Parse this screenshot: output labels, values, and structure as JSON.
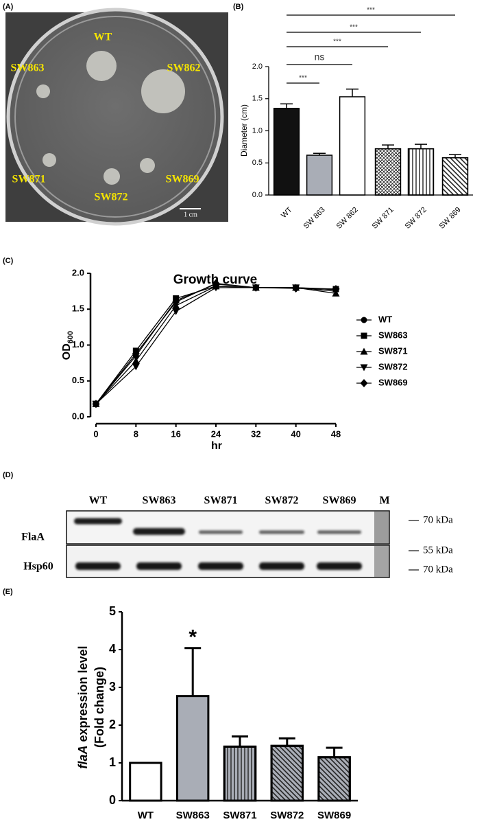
{
  "panel_labels": [
    "(A)",
    "(B)",
    "(C)",
    "(D)",
    "(E)"
  ],
  "panel_a": {
    "colonies": [
      "WT",
      "SW863",
      "SW862",
      "SW871",
      "SW872",
      "SW869"
    ],
    "scale_bar": "1 cm"
  },
  "panel_d": {
    "lanes": [
      "WT",
      "SW863",
      "SW871",
      "SW872",
      "SW869",
      "M"
    ],
    "rows": [
      "FlaA",
      "Hsp60"
    ],
    "markers": [
      "70 kDa",
      "55 kDa",
      "70 kDa"
    ]
  },
  "chart_data": [
    {
      "type": "bar",
      "ylabel": "Diameter (cm)",
      "categories": [
        "WT",
        "SW 863",
        "SW 862",
        "SW 871",
        "SW 872",
        "SW 869"
      ],
      "values": [
        1.35,
        0.62,
        1.53,
        0.72,
        0.72,
        0.58
      ],
      "errors": [
        0.07,
        0.03,
        0.12,
        0.06,
        0.07,
        0.05
      ],
      "bar_styles": [
        {
          "color": "#111111"
        },
        {
          "color": "#a9adb6"
        },
        {
          "color": "#ffffff"
        },
        {
          "color": "#ffffff",
          "hatch": "xxxx"
        },
        {
          "color": "#ffffff",
          "hatch": "|||"
        },
        {
          "color": "#ffffff",
          "hatch": "\\\\"
        }
      ],
      "ylim": [
        0,
        2
      ],
      "yticks": [
        {
          "value": 0,
          "label": "0.0"
        },
        0.5,
        {
          "value": 1,
          "label": "1.0"
        },
        1.5,
        {
          "value": 2,
          "label": "2.0"
        }
      ],
      "comparisons": [
        {
          "pair": [
            "WT",
            "SW 863"
          ],
          "label": "***"
        },
        {
          "pair": [
            "WT",
            "SW 862"
          ],
          "label": "ns"
        },
        {
          "pair": [
            "WT",
            "SW 871"
          ],
          "label": "***"
        },
        {
          "pair": [
            "WT",
            "SW 872"
          ],
          "label": "***"
        },
        {
          "pair": [
            "WT",
            "SW 869"
          ],
          "label": "***"
        }
      ]
    },
    {
      "type": "line",
      "title": "Growth curve",
      "xlabel": "hr",
      "ylabel": "OD",
      "ylabel_subscript": "600",
      "x": [
        0,
        8,
        16,
        24,
        32,
        40,
        48
      ],
      "xlim": [
        0,
        48
      ],
      "xticks": [
        0,
        8,
        16,
        24,
        32,
        40,
        48
      ],
      "ylim": [
        0,
        2
      ],
      "yticks": [
        {
          "value": 0,
          "label": "0.0"
        },
        0.5,
        {
          "value": 1,
          "label": "1.0"
        },
        1.5,
        {
          "value": 2,
          "label": "2.0"
        }
      ],
      "series": [
        {
          "name": "WT",
          "color": "#000000",
          "marker": "circle",
          "values": [
            0.18,
            0.85,
            1.62,
            1.85,
            1.8,
            1.8,
            1.77
          ]
        },
        {
          "name": "SW863",
          "color": "#000000",
          "marker": "square",
          "values": [
            0.18,
            0.92,
            1.65,
            1.82,
            1.8,
            1.8,
            1.78
          ]
        },
        {
          "name": "SW871",
          "color": "#000000",
          "marker": "triangle-up",
          "values": [
            0.18,
            0.78,
            1.55,
            1.82,
            1.8,
            1.8,
            1.72
          ]
        },
        {
          "name": "SW872",
          "color": "#000000",
          "marker": "triangle-down",
          "values": [
            0.18,
            0.7,
            1.47,
            1.8,
            1.8,
            1.8,
            1.75
          ]
        },
        {
          "name": "SW869",
          "color": "#000000",
          "marker": "diamond",
          "values": [
            0.18,
            0.88,
            1.6,
            1.86,
            1.8,
            1.79,
            1.78
          ]
        }
      ]
    },
    {
      "type": "bar",
      "ylabel_italic": "flaA",
      "ylabel": " expression level",
      "ylabel_line2": "(Fold change)",
      "categories": [
        "WT",
        "SW863",
        "SW871",
        "SW872",
        "SW869"
      ],
      "values": [
        1.0,
        2.77,
        1.43,
        1.45,
        1.15
      ],
      "errors": [
        null,
        1.27,
        0.27,
        0.2,
        0.25
      ],
      "bar_styles": [
        {
          "color": "#ffffff"
        },
        {
          "color": "#a9adb6"
        },
        {
          "color": "#a9adb6",
          "hatch": "|||"
        },
        {
          "color": "#a9adb6",
          "hatch": "\\\\"
        },
        {
          "color": "#a9adb6",
          "hatch": "\\\\"
        }
      ],
      "ylim": [
        0,
        5
      ],
      "yticks": [
        0,
        1,
        2,
        3,
        4,
        5
      ],
      "annotations": [
        {
          "category": "SW863",
          "label": "*"
        }
      ]
    }
  ]
}
